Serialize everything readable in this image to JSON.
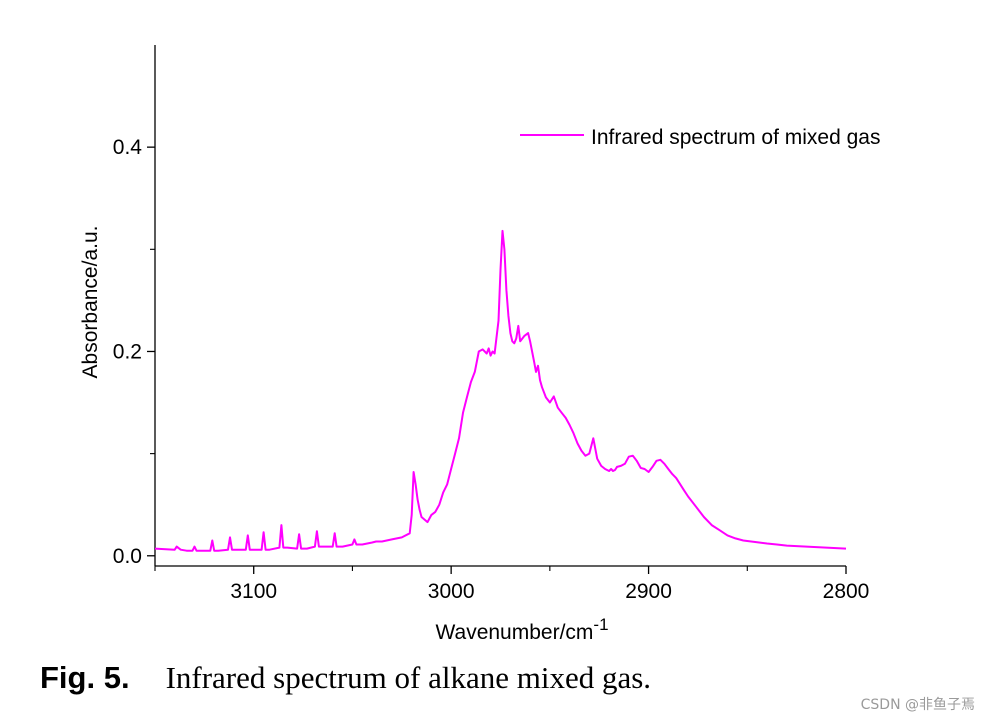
{
  "chart_data": {
    "type": "line",
    "xlabel": "Wavenumber/cm",
    "xlabel_superscript": "-1",
    "ylabel": "Absorbance/a.u.",
    "xlim": [
      3150,
      2800
    ],
    "ylim": [
      -0.01,
      0.5
    ],
    "x_ticks": [
      3100,
      3000,
      2900,
      2800
    ],
    "x_tick_labels": [
      "3100",
      "3000",
      "2900",
      "2800"
    ],
    "y_ticks": [
      0.0,
      0.2,
      0.4
    ],
    "y_tick_labels": [
      "0.0",
      "0.2",
      "0.4"
    ],
    "legend_position": "top-right",
    "series": [
      {
        "name": "Infrared spectrum of mixed gas",
        "color": "#ff00ff",
        "x": [
          3150,
          3140,
          3139,
          3137,
          3134,
          3131,
          3130,
          3129,
          3126,
          3122,
          3121,
          3120,
          3118,
          3113,
          3112,
          3111,
          3108,
          3104,
          3103,
          3102,
          3100,
          3096,
          3095,
          3094,
          3092,
          3087,
          3086,
          3085,
          3083,
          3078,
          3077,
          3076,
          3073,
          3069,
          3068,
          3067,
          3065,
          3060,
          3059,
          3058,
          3055,
          3050,
          3049,
          3048,
          3045,
          3040,
          3038,
          3035,
          3030,
          3025,
          3021,
          3020,
          3019,
          3018,
          3017,
          3016,
          3015,
          3012,
          3010,
          3008,
          3006,
          3004,
          3002,
          3000,
          2998,
          2996,
          2994,
          2992,
          2990,
          2988,
          2986,
          2984,
          2982,
          2981,
          2980,
          2979,
          2978,
          2976,
          2975,
          2974,
          2973,
          2972,
          2971,
          2970,
          2969,
          2968,
          2967,
          2966,
          2965,
          2963,
          2961,
          2960,
          2958,
          2957,
          2956,
          2955,
          2954,
          2952,
          2950,
          2948,
          2946,
          2944,
          2942,
          2940,
          2938,
          2936,
          2934,
          2932,
          2930,
          2928,
          2926,
          2924,
          2922,
          2920,
          2919,
          2918,
          2917,
          2916,
          2914,
          2912,
          2910,
          2908,
          2906,
          2904,
          2902,
          2900,
          2898,
          2896,
          2894,
          2892,
          2890,
          2888,
          2886,
          2884,
          2882,
          2880,
          2876,
          2872,
          2868,
          2864,
          2860,
          2856,
          2852,
          2848,
          2844,
          2840,
          2835,
          2830,
          2820,
          2810,
          2800
        ],
        "y": [
          0.007,
          0.006,
          0.009,
          0.006,
          0.005,
          0.005,
          0.009,
          0.005,
          0.005,
          0.005,
          0.015,
          0.005,
          0.005,
          0.006,
          0.018,
          0.006,
          0.006,
          0.006,
          0.02,
          0.006,
          0.006,
          0.006,
          0.023,
          0.006,
          0.006,
          0.008,
          0.03,
          0.008,
          0.008,
          0.007,
          0.021,
          0.007,
          0.007,
          0.009,
          0.024,
          0.009,
          0.009,
          0.009,
          0.022,
          0.009,
          0.009,
          0.011,
          0.016,
          0.011,
          0.011,
          0.013,
          0.014,
          0.014,
          0.016,
          0.018,
          0.022,
          0.04,
          0.082,
          0.07,
          0.055,
          0.045,
          0.038,
          0.033,
          0.04,
          0.043,
          0.05,
          0.062,
          0.07,
          0.085,
          0.1,
          0.115,
          0.14,
          0.155,
          0.17,
          0.18,
          0.2,
          0.202,
          0.198,
          0.203,
          0.196,
          0.2,
          0.198,
          0.23,
          0.28,
          0.318,
          0.3,
          0.26,
          0.235,
          0.218,
          0.21,
          0.208,
          0.213,
          0.225,
          0.21,
          0.215,
          0.218,
          0.21,
          0.19,
          0.18,
          0.186,
          0.172,
          0.165,
          0.155,
          0.15,
          0.156,
          0.145,
          0.14,
          0.135,
          0.128,
          0.12,
          0.11,
          0.103,
          0.098,
          0.1,
          0.115,
          0.095,
          0.088,
          0.085,
          0.083,
          0.085,
          0.083,
          0.084,
          0.087,
          0.088,
          0.09,
          0.097,
          0.098,
          0.093,
          0.086,
          0.085,
          0.082,
          0.087,
          0.093,
          0.094,
          0.09,
          0.085,
          0.08,
          0.076,
          0.07,
          0.064,
          0.058,
          0.048,
          0.038,
          0.03,
          0.025,
          0.02,
          0.017,
          0.015,
          0.014,
          0.013,
          0.012,
          0.011,
          0.01,
          0.009,
          0.008,
          0.007
        ]
      }
    ]
  },
  "caption": {
    "label": "Fig. 5.",
    "text": "Infrared spectrum of alkane mixed gas."
  },
  "watermark": "CSDN @非鱼子焉"
}
